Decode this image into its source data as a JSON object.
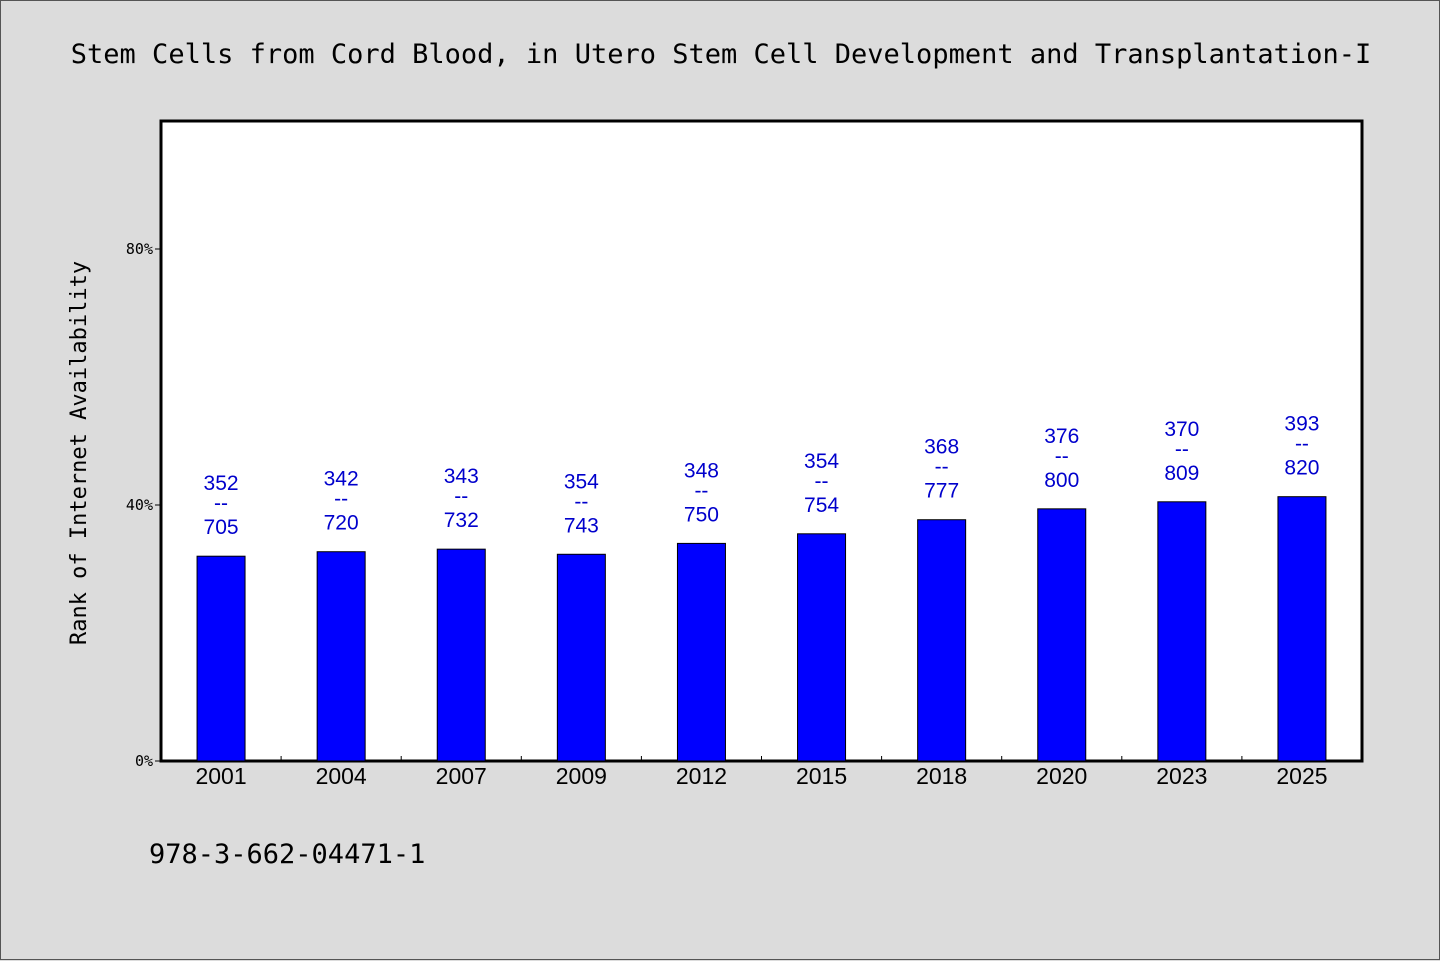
{
  "chart_data": {
    "type": "bar",
    "title": "Stem Cells from Cord Blood, in Utero Stem Cell Development and Transplantation-I",
    "xlabel": "",
    "ylabel": "Rank of Internet Availability",
    "ylim": [
      0,
      100
    ],
    "y_ticks": [
      {
        "value": 0,
        "label": "0%"
      },
      {
        "value": 40,
        "label": "40%"
      },
      {
        "value": 80,
        "label": "80%"
      }
    ],
    "categories": [
      "2001",
      "2004",
      "2007",
      "2009",
      "2012",
      "2015",
      "2018",
      "2020",
      "2023",
      "2025"
    ],
    "values": [
      32,
      32.7,
      33.1,
      32.3,
      34,
      35.5,
      37.7,
      39.4,
      40.5,
      41.3
    ],
    "data_labels": [
      {
        "top": "352",
        "sep": "--",
        "bottom": "705"
      },
      {
        "top": "342",
        "sep": "--",
        "bottom": "720"
      },
      {
        "top": "343",
        "sep": "--",
        "bottom": "732"
      },
      {
        "top": "354",
        "sep": "--",
        "bottom": "743"
      },
      {
        "top": "348",
        "sep": "--",
        "bottom": "750"
      },
      {
        "top": "354",
        "sep": "--",
        "bottom": "754"
      },
      {
        "top": "368",
        "sep": "--",
        "bottom": "777"
      },
      {
        "top": "376",
        "sep": "--",
        "bottom": "800"
      },
      {
        "top": "370",
        "sep": "--",
        "bottom": "809"
      },
      {
        "top": "393",
        "sep": "--",
        "bottom": "820"
      }
    ],
    "grid": false,
    "bar_color": "#0000ff",
    "label_color": "#0000cc"
  },
  "footer": {
    "isbn": "978-3-662-04471-1"
  }
}
